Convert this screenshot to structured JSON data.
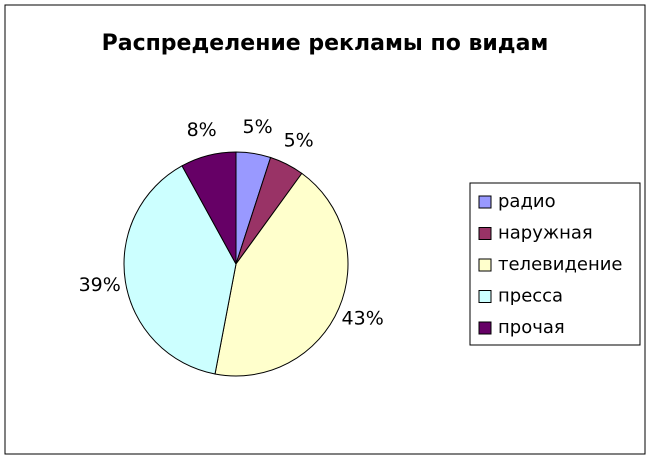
{
  "chart_data": {
    "type": "pie",
    "title": "Распределение рекламы по видам",
    "categories": [
      "радио",
      "наружная",
      "телевидение",
      "пресса",
      "прочая"
    ],
    "values": [
      5,
      5,
      43,
      39,
      8
    ],
    "value_labels": [
      "5%",
      "5%",
      "43%",
      "39%",
      "8%"
    ],
    "colors": [
      "#9999ff",
      "#993366",
      "#ffffcc",
      "#ccffff",
      "#660066"
    ],
    "legend": "right"
  }
}
